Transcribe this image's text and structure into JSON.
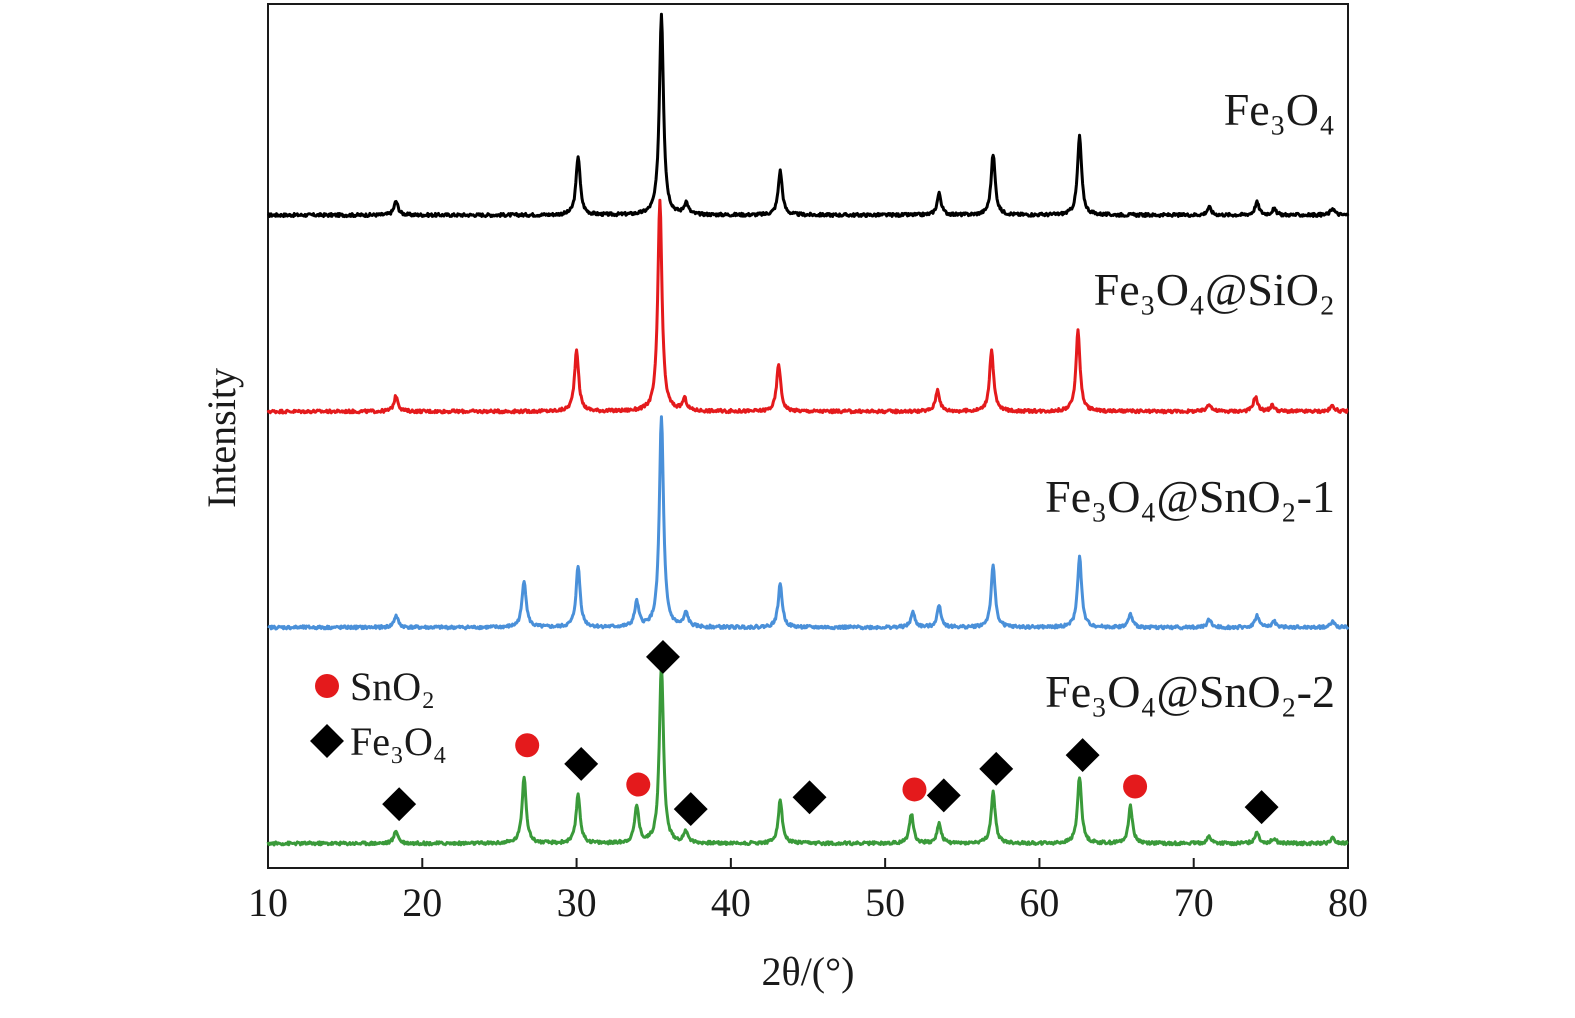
{
  "chart_data": {
    "type": "line",
    "xlabel": "2θ/(°)",
    "ylabel": "Intensity",
    "xlim": [
      10,
      80
    ],
    "ylim": [
      0,
      880
    ],
    "xticks": [
      10,
      20,
      30,
      40,
      50,
      60,
      70,
      80
    ],
    "grid": false,
    "series": [
      {
        "name": "Fe₃O₄",
        "color": "#000000",
        "offset": 665,
        "peaks": [
          [
            18.3,
            14
          ],
          [
            30.1,
            60
          ],
          [
            35.5,
            205
          ],
          [
            37.1,
            12
          ],
          [
            43.2,
            45
          ],
          [
            53.5,
            22
          ],
          [
            57.0,
            62
          ],
          [
            62.6,
            80
          ],
          [
            71.0,
            8
          ],
          [
            74.1,
            13
          ],
          [
            75.2,
            6
          ],
          [
            79.0,
            7
          ]
        ]
      },
      {
        "name": "Fe₃O₄@SiO₂",
        "color": "#e41a1c",
        "offset": 465,
        "peaks": [
          [
            18.3,
            16
          ],
          [
            30.0,
            63
          ],
          [
            35.4,
            215
          ],
          [
            37.0,
            12
          ],
          [
            43.1,
            48
          ],
          [
            53.4,
            22
          ],
          [
            56.9,
            62
          ],
          [
            62.5,
            82
          ],
          [
            71.0,
            8
          ],
          [
            74.0,
            15
          ],
          [
            75.1,
            6
          ],
          [
            79.0,
            6
          ]
        ]
      },
      {
        "name": "Fe₃O₄@SnO₂-1",
        "color": "#4a90d9",
        "offset": 245,
        "peaks": [
          [
            18.3,
            12
          ],
          [
            26.6,
            48
          ],
          [
            30.1,
            62
          ],
          [
            33.9,
            25
          ],
          [
            35.5,
            215
          ],
          [
            37.1,
            14
          ],
          [
            43.2,
            44
          ],
          [
            51.8,
            15
          ],
          [
            53.5,
            22
          ],
          [
            57.0,
            62
          ],
          [
            62.6,
            72
          ],
          [
            65.9,
            13
          ],
          [
            71.0,
            8
          ],
          [
            74.1,
            12
          ],
          [
            75.2,
            6
          ],
          [
            79.0,
            6
          ]
        ]
      },
      {
        "name": "Fe₃O₄@SnO₂-2",
        "color": "#3a9a3a",
        "offset": 25,
        "peaks": [
          [
            18.3,
            13
          ],
          [
            26.6,
            68
          ],
          [
            30.1,
            50
          ],
          [
            33.9,
            38
          ],
          [
            35.5,
            182
          ],
          [
            37.1,
            12
          ],
          [
            43.2,
            44
          ],
          [
            51.7,
            30
          ],
          [
            53.5,
            20
          ],
          [
            57.0,
            52
          ],
          [
            62.6,
            68
          ],
          [
            65.9,
            38
          ],
          [
            71.0,
            7
          ],
          [
            74.1,
            12
          ],
          [
            75.2,
            5
          ],
          [
            79.0,
            5
          ]
        ]
      }
    ],
    "markers": {
      "SnO₂": [
        [
          26.8,
          125
        ],
        [
          34.0,
          85
        ],
        [
          51.9,
          80
        ],
        [
          66.2,
          83
        ]
      ],
      "Fe₃O₄": [
        [
          18.5,
          65
        ],
        [
          30.3,
          106
        ],
        [
          35.6,
          215
        ],
        [
          37.4,
          60
        ],
        [
          45.1,
          72
        ],
        [
          53.8,
          74
        ],
        [
          57.2,
          101
        ],
        [
          62.8,
          115
        ],
        [
          74.4,
          62
        ]
      ]
    },
    "marker_colors": {
      "SnO₂": "#e41a1c",
      "Fe₃O₄": "#000000"
    },
    "legend": {
      "placement": "lower-left",
      "entries": [
        {
          "label": "SnO₂",
          "symbol": "circle",
          "color": "#e41a1c"
        },
        {
          "label": "Fe₃O₄",
          "symbol": "diamond",
          "color": "#000000"
        }
      ]
    }
  }
}
